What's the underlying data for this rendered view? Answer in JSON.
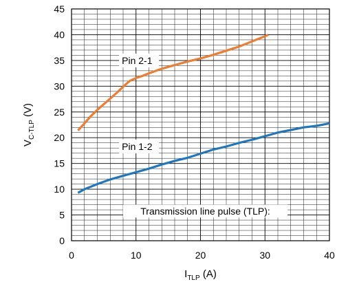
{
  "chart_data": {
    "type": "line",
    "title": "",
    "xlabel": {
      "main": "I",
      "sub": "TLP",
      "unit": " (A)"
    },
    "ylabel": {
      "main": "V",
      "sub": "C-TLP",
      "unit": " (V)"
    },
    "xlim": [
      0,
      40
    ],
    "ylim": [
      0,
      45
    ],
    "x_ticks": [
      0,
      10,
      20,
      30,
      40
    ],
    "y_ticks": [
      0,
      5,
      10,
      15,
      20,
      25,
      30,
      35,
      40,
      45
    ],
    "grid": true,
    "colors": {
      "pin21": "#ee7d31",
      "pin12": "#1f77c0",
      "grid": "#000000"
    },
    "series": [
      {
        "name": "Pin 2-1",
        "x": [
          1,
          2,
          3,
          4,
          5,
          6,
          7,
          8,
          9,
          10,
          11,
          12,
          14,
          16,
          18,
          20,
          22,
          24,
          26,
          28,
          30,
          30.5
        ],
        "y": [
          21.4,
          22.8,
          24.2,
          25.4,
          26.5,
          27.6,
          28.7,
          29.9,
          31.0,
          31.6,
          32.0,
          32.5,
          33.4,
          34.1,
          34.8,
          35.4,
          36.1,
          36.9,
          37.7,
          38.7,
          39.7,
          40.0
        ]
      },
      {
        "name": "Pin 1-2",
        "x": [
          1,
          2,
          4,
          6,
          8,
          10,
          12,
          14,
          16,
          18,
          20,
          22,
          24,
          26,
          28,
          30,
          32,
          34,
          36,
          38,
          40
        ],
        "y": [
          9.3,
          10.0,
          11.0,
          11.9,
          12.6,
          13.3,
          14.0,
          14.8,
          15.5,
          16.1,
          16.9,
          17.7,
          18.3,
          19.0,
          19.6,
          20.3,
          21.0,
          21.5,
          22.0,
          22.3,
          22.8
        ]
      }
    ],
    "annotations": {
      "pin21": "Pin 2-1",
      "pin12": "Pin 1-2",
      "legend_box": "Transmission line pulse (TLP):"
    }
  }
}
